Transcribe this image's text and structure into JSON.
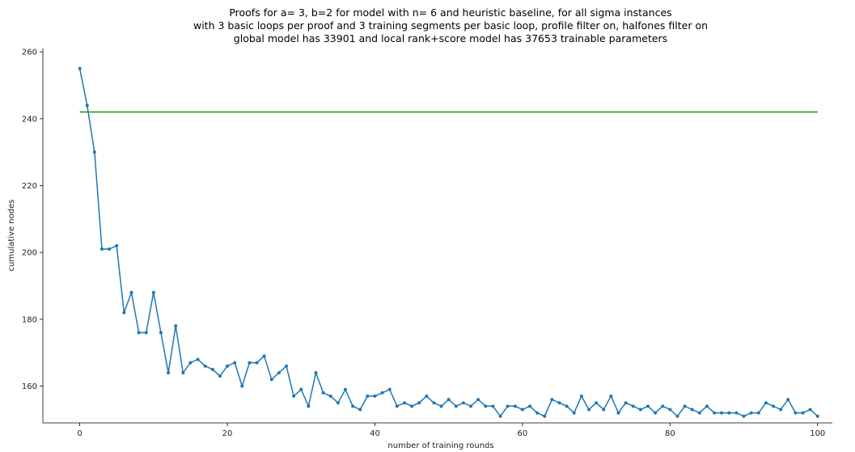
{
  "chart_data": {
    "type": "line",
    "title_lines": [
      "Proofs for a= 3, b=2 for model with n= 6 and heuristic baseline, for all sigma instances",
      "with 3 basic loops per proof and 3 training segments per basic loop, profile filter on, halfones filter on",
      "global model has 33901 and local rank+score model has 37653 trainable parameters"
    ],
    "xlabel": "number of training rounds",
    "ylabel": "cumulative nodes",
    "xlim": [
      -5,
      102
    ],
    "ylim": [
      149,
      261
    ],
    "xticks": [
      0,
      20,
      40,
      60,
      80,
      100
    ],
    "yticks": [
      160,
      180,
      200,
      220,
      240,
      260
    ],
    "grid": false,
    "colors": {
      "model": "#1f77b4",
      "baseline": "#2ca02c"
    },
    "series": [
      {
        "role": "model",
        "x": [
          0,
          1,
          2,
          3,
          4,
          5,
          6,
          7,
          8,
          9,
          10,
          11,
          12,
          13,
          14,
          15,
          16,
          17,
          18,
          19,
          20,
          21,
          22,
          23,
          24,
          25,
          26,
          27,
          28,
          29,
          30,
          31,
          32,
          33,
          34,
          35,
          36,
          37,
          38,
          39,
          40,
          41,
          42,
          43,
          44,
          45,
          46,
          47,
          48,
          49,
          50,
          51,
          52,
          53,
          54,
          55,
          56,
          57,
          58,
          59,
          60,
          61,
          62,
          63,
          64,
          65,
          66,
          67,
          68,
          69,
          70,
          71,
          72,
          73,
          74,
          75,
          76,
          77,
          78,
          79,
          80,
          81,
          82,
          83,
          84,
          85,
          86,
          87,
          88,
          89,
          90,
          91,
          92,
          93,
          94,
          95,
          96,
          97,
          98,
          99,
          100
        ],
        "values": [
          255,
          244,
          230,
          201,
          201,
          202,
          182,
          188,
          176,
          176,
          188,
          176,
          164,
          178,
          164,
          167,
          168,
          166,
          165,
          163,
          166,
          167,
          160,
          167,
          167,
          169,
          162,
          164,
          166,
          157,
          159,
          154,
          164,
          158,
          157,
          155,
          159,
          154,
          153,
          157,
          157,
          158,
          159,
          154,
          155,
          154,
          155,
          157,
          155,
          154,
          156,
          154,
          155,
          154,
          156,
          154,
          154,
          151,
          154,
          154,
          153,
          154,
          152,
          151,
          156,
          155,
          154,
          152,
          157,
          153,
          155,
          153,
          157,
          152,
          155,
          154,
          153,
          154,
          152,
          154,
          153,
          151,
          154,
          153,
          152,
          154,
          152,
          152,
          152,
          152,
          151,
          152,
          152,
          155,
          154,
          153,
          156,
          152,
          152,
          153,
          151
        ]
      },
      {
        "role": "baseline",
        "x": [
          0,
          100
        ],
        "values": [
          242,
          242
        ]
      }
    ]
  }
}
